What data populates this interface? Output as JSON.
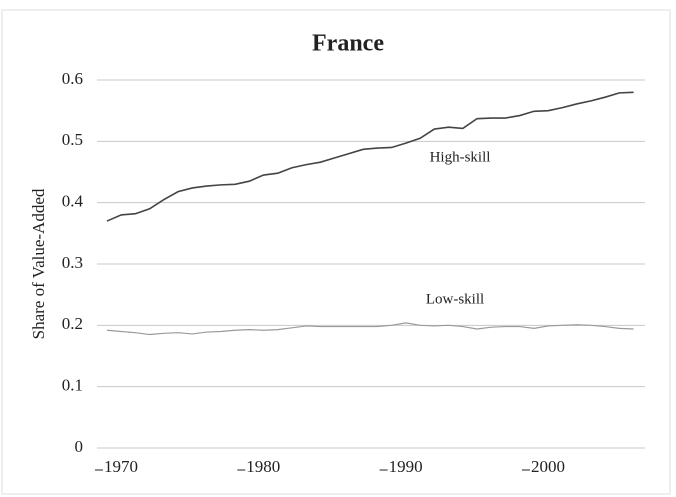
{
  "chart_data": {
    "type": "line",
    "title": "France",
    "y_label": "Share of Value-Added",
    "x": [
      1970,
      1971,
      1972,
      1973,
      1974,
      1975,
      1976,
      1977,
      1978,
      1979,
      1980,
      1981,
      1982,
      1983,
      1984,
      1985,
      1986,
      1987,
      1988,
      1989,
      1990,
      1991,
      1992,
      1993,
      1994,
      1995,
      1996,
      1997,
      1998,
      1999,
      2000,
      2001,
      2002,
      2003,
      2004,
      2005,
      2006,
      2007
    ],
    "series": [
      {
        "name": "High-skill",
        "color": "#444444",
        "values": [
          0.37,
          0.38,
          0.382,
          0.39,
          0.405,
          0.418,
          0.424,
          0.427,
          0.429,
          0.43,
          0.435,
          0.445,
          0.448,
          0.457,
          0.462,
          0.466,
          0.473,
          0.48,
          0.487,
          0.489,
          0.49,
          0.497,
          0.505,
          0.52,
          0.523,
          0.521,
          0.537,
          0.538,
          0.538,
          0.542,
          0.549,
          0.55,
          0.555,
          0.561,
          0.566,
          0.572,
          0.579,
          0.58
        ]
      },
      {
        "name": "Low-skill",
        "color": "#9a9a9a",
        "values": [
          0.192,
          0.19,
          0.188,
          0.185,
          0.187,
          0.188,
          0.186,
          0.189,
          0.19,
          0.192,
          0.193,
          0.192,
          0.193,
          0.196,
          0.199,
          0.198,
          0.198,
          0.198,
          0.198,
          0.198,
          0.2,
          0.204,
          0.2,
          0.199,
          0.2,
          0.198,
          0.194,
          0.197,
          0.198,
          0.198,
          0.195,
          0.199,
          0.2,
          0.201,
          0.2,
          0.198,
          0.195,
          0.194
        ]
      }
    ],
    "xlim": [
      1969.3,
      2007.8
    ],
    "xticks": [
      1970,
      1980,
      1990,
      2000
    ],
    "ylim": [
      0,
      0.6
    ],
    "yticks": [
      0,
      0.1,
      0.2,
      0.3,
      0.4,
      0.5,
      0.6
    ],
    "grid": true
  }
}
